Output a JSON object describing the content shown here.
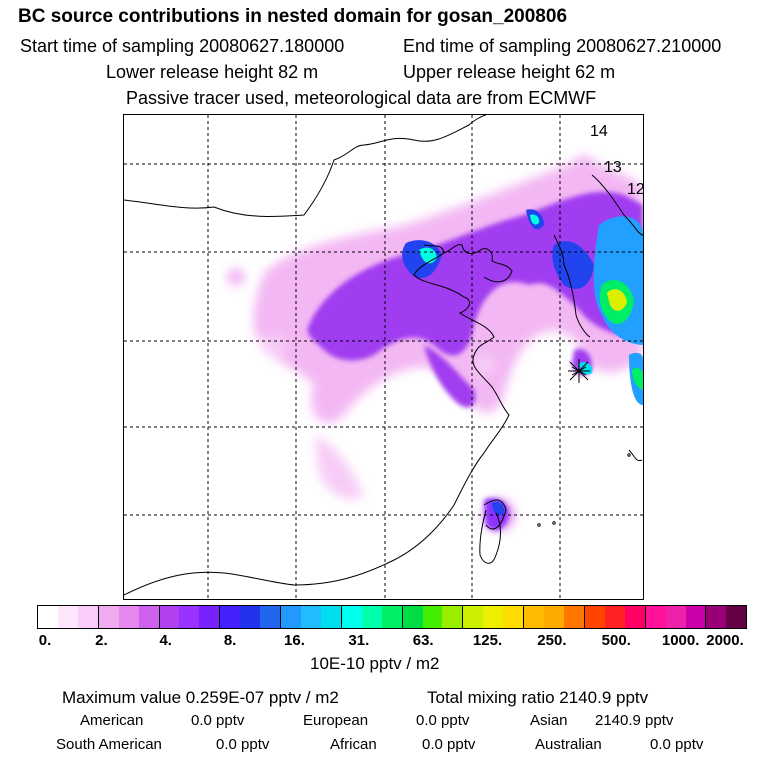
{
  "header": {
    "title": "BC  source contributions in nested domain for gosan_200806",
    "start_time": "Start time of sampling 20080627.180000",
    "end_time": "End time of sampling 20080627.210000",
    "lower_height": "Lower release height   82 m",
    "upper_height": "Upper release height   62 m",
    "tracer_note": "Passive tracer used, meteorological data are from ECMWF"
  },
  "map": {
    "contour_labels": [
      "14",
      "13",
      "12"
    ]
  },
  "legend": {
    "colors": [
      "#ffffff",
      "#fde6fd",
      "#f9ccf9",
      "#f0aaf0",
      "#e488f0",
      "#d060f0",
      "#b040f0",
      "#9933ff",
      "#7722ff",
      "#4422ff",
      "#2233ee",
      "#2266ee",
      "#2299ff",
      "#22bbff",
      "#00ddee",
      "#00ffee",
      "#00ffaa",
      "#00ee66",
      "#00dd44",
      "#44ee00",
      "#99ee00",
      "#ccee00",
      "#eeee00",
      "#ffdd00",
      "#ffbb00",
      "#ffaa00",
      "#ff7700",
      "#ff4400",
      "#ff2222",
      "#ff0066",
      "#ff1199",
      "#ee22aa",
      "#cc00aa",
      "#990077",
      "#660044"
    ],
    "ticks": [
      "0.",
      "2.",
      "4.",
      "8.",
      "16.",
      "31.",
      "63.",
      "125.",
      "250.",
      "500.",
      "1000.",
      "2000."
    ],
    "units": "10E-10 pptv / m2"
  },
  "stats": {
    "max_value": "Maximum value  0.259E-07 pptv / m2",
    "total_mixing": "Total mixing ratio     2140.9 pptv",
    "american_label": "American",
    "american_value": "0.0 pptv",
    "european_label": "European",
    "european_value": "0.0 pptv",
    "asian_label": "Asian",
    "asian_value": "2140.9 pptv",
    "south_american_label": "South American",
    "south_american_value": "0.0 pptv",
    "african_label": "African",
    "african_value": "0.0 pptv",
    "australian_label": "Australian",
    "australian_value": "0.0 pptv"
  }
}
